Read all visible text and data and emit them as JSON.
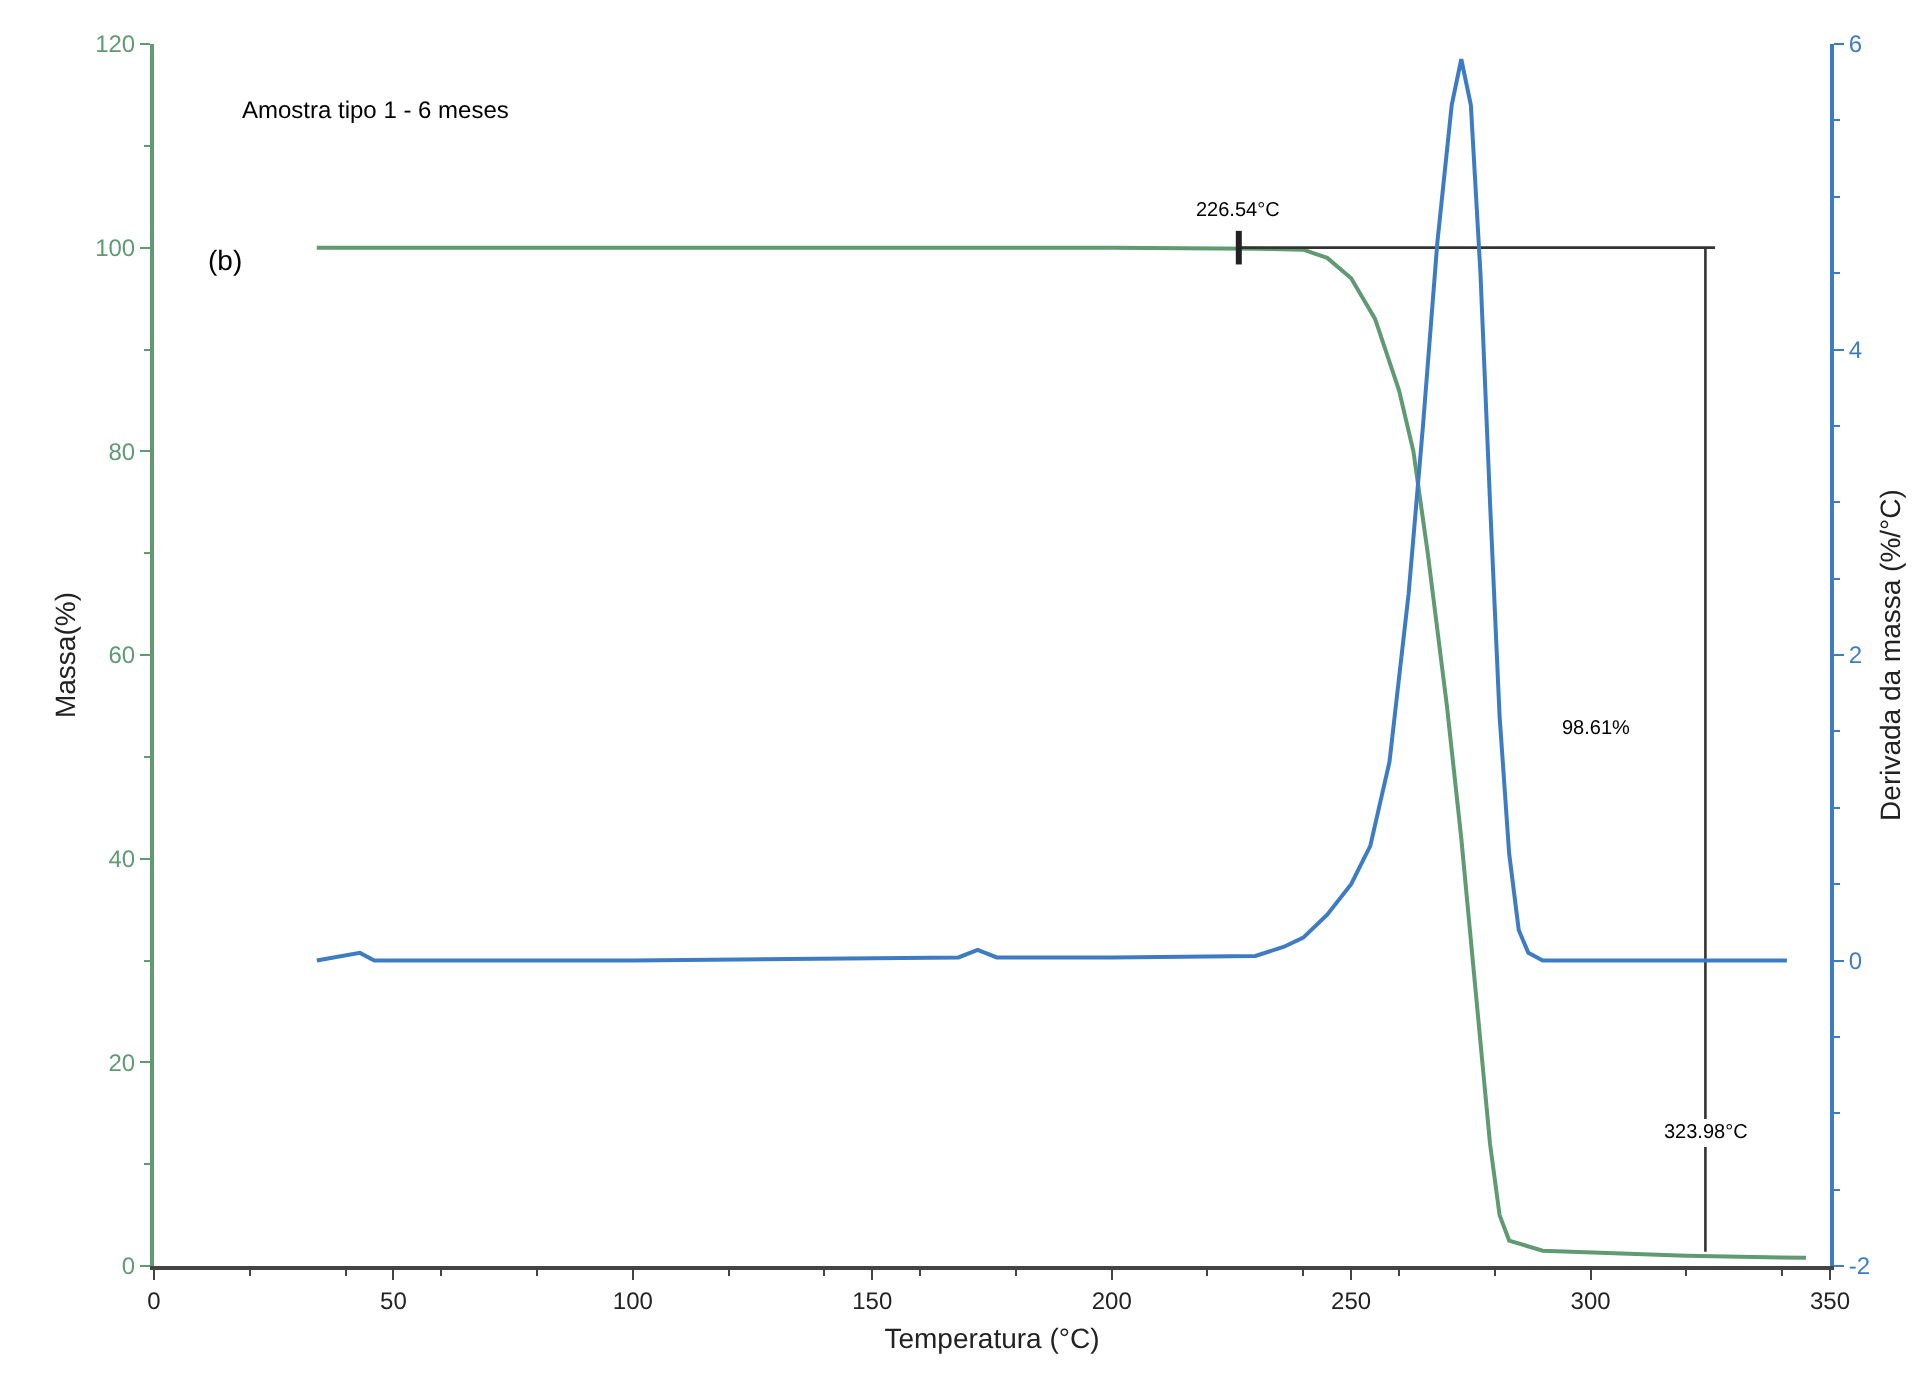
{
  "chart_data": {
    "type": "line",
    "xlabel": "Temperatura (°C)",
    "ylabel": "Massa(%)",
    "y2label": "Derivada da massa (%/°C)",
    "xlim": [
      0,
      350
    ],
    "xticks": [
      0,
      50,
      100,
      150,
      200,
      250,
      300,
      350
    ],
    "ylim": [
      0,
      120
    ],
    "yticks": [
      0,
      20,
      40,
      60,
      80,
      100,
      120
    ],
    "y2lim": [
      -2,
      6
    ],
    "y2ticks": [
      -2,
      0,
      2,
      4,
      6
    ],
    "marker": "none",
    "line_style": "solid",
    "series": [
      {
        "color": "#5f9a72",
        "x": [
          34,
          100,
          200,
          230,
          240,
          245,
          250,
          255,
          260,
          263,
          266,
          270,
          273,
          276,
          279,
          281,
          283,
          290,
          320,
          345
        ],
        "values": [
          100,
          100,
          100,
          99.9,
          99.8,
          99,
          97,
          93,
          86,
          80,
          70,
          55,
          42,
          27,
          12,
          5,
          2.5,
          1.5,
          1,
          0.8
        ]
      },
      {
        "color": "#333333",
        "x": [
          226.54,
          326
        ],
        "values": [
          100,
          100
        ]
      },
      {
        "color": "#333333",
        "x": [
          323.98,
          323.98
        ],
        "values": [
          100,
          1.4
        ]
      },
      {
        "color": "#3d7cc4",
        "axis": "y2",
        "x": [
          34,
          43,
          46,
          100,
          168,
          172,
          176,
          200,
          230,
          236,
          240,
          245,
          250,
          254,
          258,
          262,
          265,
          268,
          271,
          273,
          275,
          277,
          279,
          281,
          283,
          285,
          287,
          290,
          341
        ],
        "values": [
          0,
          0.05,
          0,
          0,
          0.02,
          0.07,
          0.02,
          0.02,
          0.03,
          0.09,
          0.15,
          0.3,
          0.5,
          0.75,
          1.3,
          2.4,
          3.5,
          4.7,
          5.6,
          5.9,
          5.6,
          4.5,
          3.0,
          1.6,
          0.7,
          0.2,
          0.05,
          0,
          0
        ]
      }
    ],
    "annotations": [
      "Amostra tipo 1 - 6 meses",
      "(b)",
      {
        "text": "226.54°C",
        "x": 226.54,
        "y": 100
      },
      {
        "text": "323.98°C",
        "x": 323.98,
        "y": 13
      },
      "98.61%"
    ]
  }
}
